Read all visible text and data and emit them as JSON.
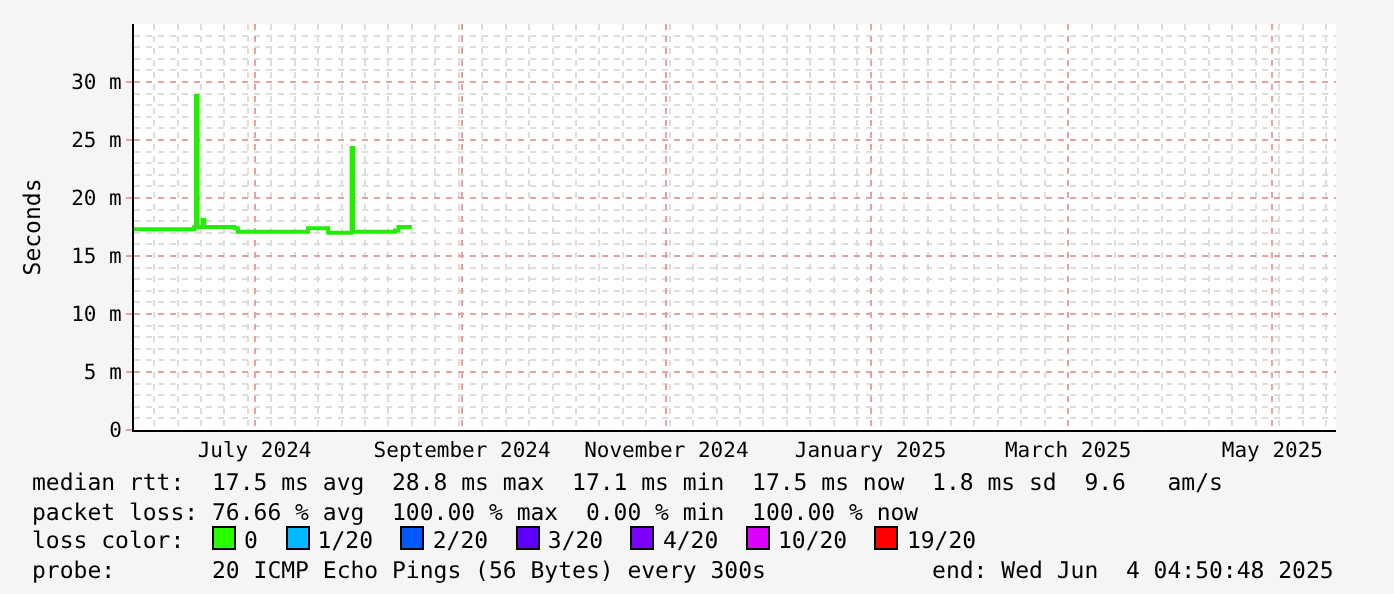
{
  "chart_data": {
    "type": "step",
    "ylabel": "Seconds",
    "x": [
      "2024-06-10",
      "2024-06-28T00:00",
      "2024-06-28T12:00",
      "2024-06-29T00:00",
      "2024-06-30T12:00",
      "2024-07-01",
      "2024-07-10",
      "2024-07-11",
      "2024-07-31",
      "2024-08-01",
      "2024-08-06",
      "2024-08-07",
      "2024-08-13T12:00",
      "2024-08-14",
      "2024-08-14T12:00",
      "2024-08-27",
      "2024-08-28",
      "2024-09-01"
    ],
    "series": [
      {
        "color": "#22ee00",
        "values": [
          17.3,
          17.5,
          28.8,
          17.5,
          18.1,
          17.5,
          17.4,
          17.1,
          17.1,
          17.4,
          17.4,
          17.0,
          17.0,
          24.3,
          17.1,
          17.2,
          17.5,
          17.5
        ]
      }
    ],
    "xlim": [
      "2024-06-10",
      "2025-06-04"
    ],
    "xticks": [
      {
        "value": "2024-07-16",
        "label": "July 2024"
      },
      {
        "value": "2024-09-16",
        "label": "September 2024"
      },
      {
        "value": "2024-11-16",
        "label": "November 2024"
      },
      {
        "value": "2025-01-16",
        "label": "January 2025"
      },
      {
        "value": "2025-03-16",
        "label": "March 2025"
      },
      {
        "value": "2025-05-16",
        "label": "May 2025"
      }
    ],
    "ylim": [
      0,
      35
    ],
    "yticks": [
      0,
      {
        "value": 5,
        "label": "5 m"
      },
      {
        "value": 10,
        "label": "10 m"
      },
      {
        "value": 15,
        "label": "15 m"
      },
      {
        "value": 20,
        "label": "20 m"
      },
      {
        "value": 25,
        "label": "25 m"
      },
      {
        "value": 30,
        "label": "30 m"
      }
    ],
    "grid": true,
    "marker": "none",
    "line_style": "solid",
    "annotations": [
      "median rtt:  17.5 ms avg  28.8 ms max  17.1 ms min  17.5 ms now  1.8 ms sd  9.6   am/s",
      "packet loss: 76.66 % avg  100.00 % max  0.00 % min  100.00 % now",
      "loss color:  0  1/20  2/20  3/20  4/20  10/20  19/20",
      "probe:       20 ICMP Echo Pings (56 Bytes) every 300s            end: Wed Jun  4 04:50:48 2025"
    ]
  }
}
